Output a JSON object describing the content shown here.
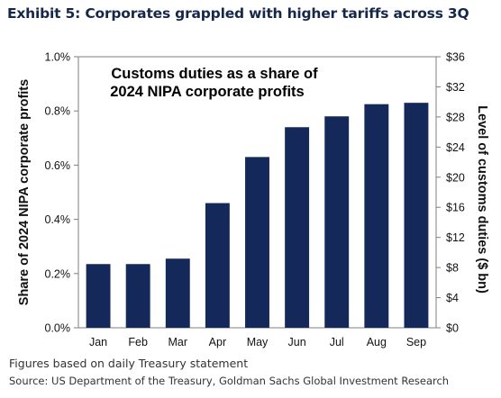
{
  "exhibit": {
    "title": "Exhibit 5: Corporates grappled with higher tariffs across 3Q"
  },
  "footnotes": {
    "note": "Figures based on daily Treasury statement",
    "source": "Source: US Department of the Treasury, Goldman Sachs Global Investment Research"
  },
  "chart_data": {
    "type": "bar",
    "title_lines": [
      "Customs duties as a share of",
      "2024 NIPA corporate profits"
    ],
    "categories": [
      "Jan",
      "Feb",
      "Mar",
      "Apr",
      "May",
      "Jun",
      "Jul",
      "Aug",
      "Sep"
    ],
    "values": [
      0.235,
      0.235,
      0.255,
      0.46,
      0.63,
      0.74,
      0.78,
      0.825,
      0.83
    ],
    "ylabel": "Share of 2024 NIPA corporate profits",
    "ylim": [
      0,
      1.0
    ],
    "y_ticks": [
      "0.0%",
      "0.2%",
      "0.4%",
      "0.6%",
      "0.8%",
      "1.0%"
    ],
    "y2label": "Level of customs duties ($ bn)",
    "y2lim": [
      0,
      36
    ],
    "y2_ticks": [
      "$0",
      "$4",
      "$8",
      "$12",
      "$16",
      "$20",
      "$24",
      "$28",
      "$32",
      "$36"
    ],
    "grid": false,
    "legend": false,
    "bar_color": "#14285a",
    "frame_color": "#7f7f7f"
  }
}
